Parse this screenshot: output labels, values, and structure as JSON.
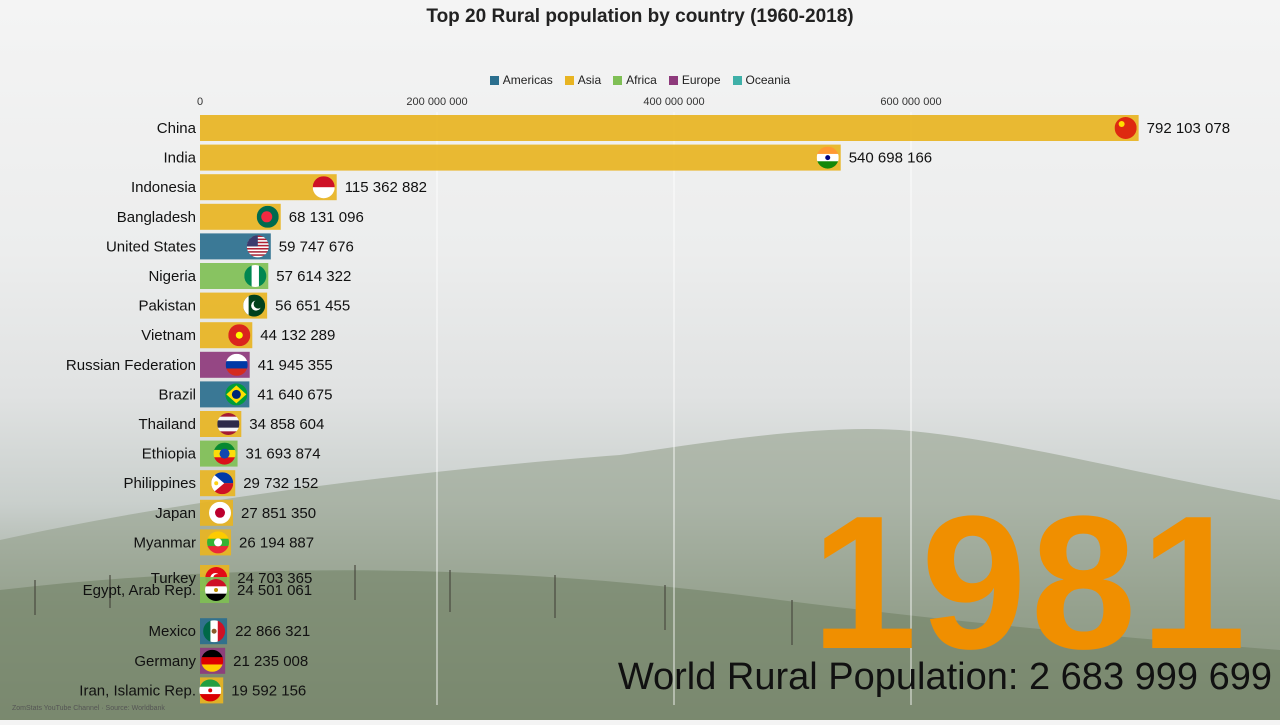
{
  "chart_data": {
    "type": "bar",
    "orientation": "horizontal",
    "title": "Top 20 Rural population by country (1960-2018)",
    "xlim": [
      0,
      900000000
    ],
    "x_ticks": [
      0,
      200000000,
      400000000,
      600000000
    ],
    "x_tick_labels": [
      "0",
      "200 000 000",
      "400 000 000",
      "600 000 000"
    ],
    "grid": true,
    "legend_placement": "top",
    "legend": [
      {
        "name": "Americas",
        "color": "#2b6f8e"
      },
      {
        "name": "Asia",
        "color": "#e8b422"
      },
      {
        "name": "Africa",
        "color": "#7fbf55"
      },
      {
        "name": "Europe",
        "color": "#8e3a7c"
      },
      {
        "name": "Oceania",
        "color": "#3fb0a8"
      }
    ],
    "categories": [
      "China",
      "India",
      "Indonesia",
      "Bangladesh",
      "United States",
      "Nigeria",
      "Pakistan",
      "Vietnam",
      "Russian Federation",
      "Brazil",
      "Thailand",
      "Ethiopia",
      "Philippines",
      "Japan",
      "Myanmar",
      "Turkey",
      "Egypt, Arab Rep.",
      "Mexico",
      "Germany",
      "Iran, Islamic Rep."
    ],
    "values": [
      792103078,
      540698166,
      115362882,
      68131096,
      59747676,
      57614322,
      56651455,
      44132289,
      41945355,
      41640675,
      34858604,
      31693874,
      29732152,
      27851350,
      26194887,
      24703365,
      24501061,
      22866321,
      21235008,
      19592156
    ],
    "value_labels": [
      "792 103 078",
      "540 698 166",
      "115 362 882",
      "68 131 096",
      "59 747 676",
      "57 614 322",
      "56 651 455",
      "44 132 289",
      "41 945 355",
      "41 640 675",
      "34 858 604",
      "31 693 874",
      "29 732 152",
      "27 851 350",
      "26 194 887",
      "24 703 365",
      "24 501 061",
      "22 866 321",
      "21 235 008",
      "19 592 156"
    ],
    "regions": [
      "Asia",
      "Asia",
      "Asia",
      "Asia",
      "Americas",
      "Africa",
      "Asia",
      "Asia",
      "Europe",
      "Americas",
      "Asia",
      "Africa",
      "Asia",
      "Asia",
      "Asia",
      "Asia",
      "Africa",
      "Americas",
      "Europe",
      "Asia"
    ],
    "flag_icons": [
      "china-flag-icon",
      "india-flag-icon",
      "indonesia-flag-icon",
      "bangladesh-flag-icon",
      "united-states-flag-icon",
      "nigeria-flag-icon",
      "pakistan-flag-icon",
      "vietnam-flag-icon",
      "russia-flag-icon",
      "brazil-flag-icon",
      "thailand-flag-icon",
      "ethiopia-flag-icon",
      "philippines-flag-icon",
      "japan-flag-icon",
      "myanmar-flag-icon",
      "turkey-flag-icon",
      "egypt-flag-icon",
      "mexico-flag-icon",
      "germany-flag-icon",
      "iran-flag-icon"
    ]
  },
  "year": "1981",
  "world_label": "World Rural Population: 2 683 999 699",
  "source": "ZomStats YouTube Channel · Source: Worldbank"
}
